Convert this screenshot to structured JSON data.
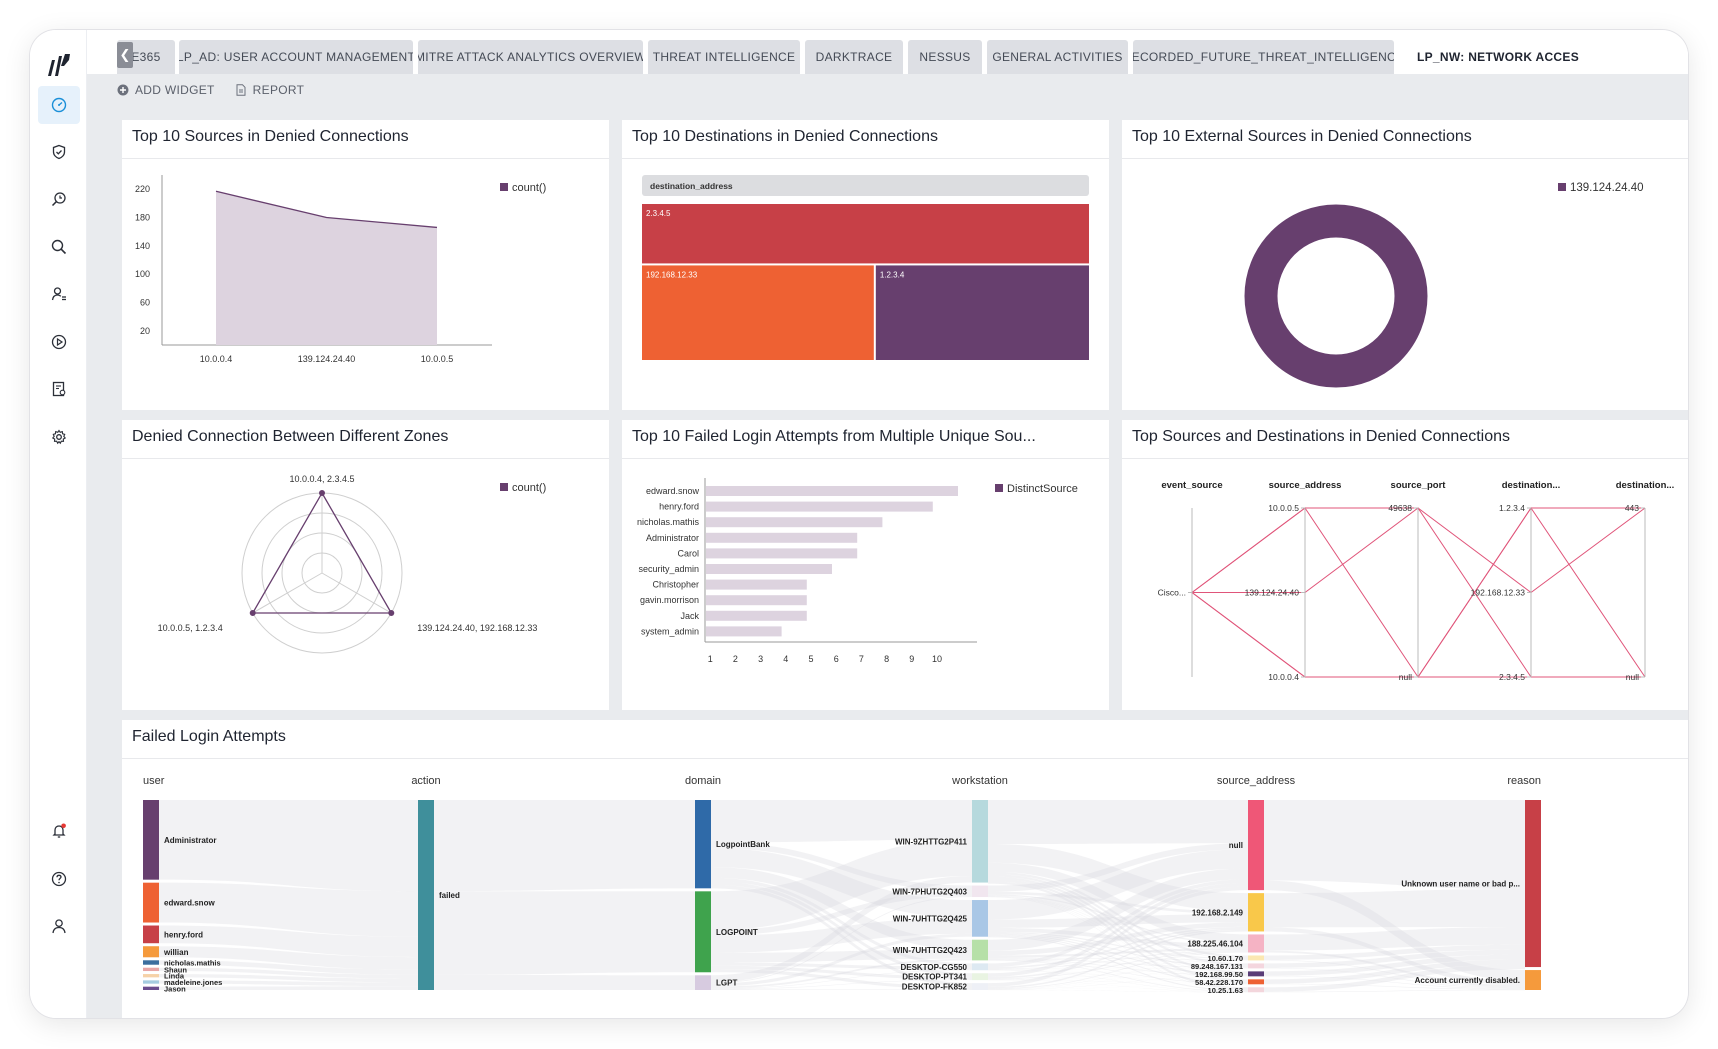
{
  "tabs": [
    {
      "label": "E365",
      "active": false
    },
    {
      "label": "LP_AD: USER ACCOUNT MANAGEMENT",
      "active": false
    },
    {
      "label": "MITRE ATTACK ANALYTICS OVERVIEW",
      "active": false
    },
    {
      "label": "THREAT INTELLIGENCE",
      "active": false
    },
    {
      "label": "DARKTRACE",
      "active": false
    },
    {
      "label": "NESSUS",
      "active": false
    },
    {
      "label": "GENERAL ACTIVITIES",
      "active": false
    },
    {
      "label": "RECORDED_FUTURE_THREAT_INTELLIGENCE",
      "active": false
    },
    {
      "label": "LP_NW: NETWORK ACCES",
      "active": true
    }
  ],
  "toolbar": {
    "add_widget": "ADD WIDGET",
    "report": "REPORT"
  },
  "sidebar": {
    "items": [
      "dashboard-icon",
      "shield-icon",
      "search-history-icon",
      "search-icon",
      "user-activity-icon",
      "play-icon",
      "report-icon",
      "gear-icon"
    ],
    "bottom": [
      "bell-icon",
      "help-icon",
      "user-icon"
    ],
    "accent": "#1a8fd8",
    "alert_color": "#e53935"
  },
  "colors": {
    "purple": "#673f6e",
    "light_purple": "#ddd3df",
    "red": "#c74047",
    "orange": "#ee6133",
    "pink_line": "#e0557a"
  },
  "panels": {
    "p1": {
      "title": "Top 10 Sources in Denied Connections"
    },
    "p2": {
      "title": "Top 10 Destinations in Denied Connections"
    },
    "p3": {
      "title": "Top 10 External Sources in Denied Connections"
    },
    "p4": {
      "title": "Denied Connection Between Different Zones"
    },
    "p5": {
      "title": "Top 10 Failed Login Attempts from Multiple Unique Sou..."
    },
    "p6": {
      "title": "Top Sources and Destinations in Denied Connections"
    },
    "p7": {
      "title": "Failed Login Attempts"
    }
  },
  "chart_data": [
    {
      "id": "p1",
      "type": "area",
      "categories": [
        "10.0.0.4",
        "139.124.24.40",
        "10.0.0.5"
      ],
      "series": [
        {
          "name": "count()",
          "values": [
            217,
            180,
            166
          ]
        }
      ],
      "yticks": [
        20,
        60,
        100,
        140,
        180,
        220
      ],
      "ylim": [
        0,
        240
      ],
      "legend": "top-right"
    },
    {
      "id": "p2",
      "type": "treemap",
      "header": "destination_address",
      "items": [
        {
          "label": "2.3.4.5",
          "value": 40,
          "color": "#c74047"
        },
        {
          "label": "192.168.12.33",
          "value": 34,
          "color": "#ee6133"
        },
        {
          "label": "1.2.3.4",
          "value": 31,
          "color": "#673f6e"
        }
      ]
    },
    {
      "id": "p3",
      "type": "pie",
      "labels": [
        "139.124.24.40"
      ],
      "values": [
        100
      ],
      "legend": "top-right",
      "donut": true
    },
    {
      "id": "p4",
      "type": "radar",
      "axes": [
        "10.0.0.4, 2.3.4.5",
        "139.124.24.40, 192.168.12.33",
        "10.0.0.5, 1.2.3.4"
      ],
      "series": [
        {
          "name": "count()",
          "values": [
            1,
            1,
            1
          ]
        }
      ],
      "rmax": 1,
      "rings": 4,
      "legend": "top-right"
    },
    {
      "id": "p5",
      "type": "bar",
      "orientation": "horizontal",
      "categories": [
        "edward.snow",
        "henry.ford",
        "nicholas.mathis",
        "Administrator",
        "Carol",
        "security_admin",
        "Christopher",
        "gavin.morrison",
        "Jack",
        "system_admin"
      ],
      "series": [
        {
          "name": "DistinctSource",
          "values": [
            10,
            9,
            7,
            6,
            6,
            5,
            4,
            4,
            4,
            3
          ]
        }
      ],
      "xticks": [
        1,
        2,
        3,
        4,
        5,
        6,
        7,
        8,
        9,
        10
      ],
      "xlim": [
        0,
        10
      ],
      "legend": "top-right"
    },
    {
      "id": "p6",
      "type": "parallel",
      "axes": [
        {
          "name": "event_source",
          "ticks": [
            "Cisco..."
          ]
        },
        {
          "name": "source_address",
          "ticks": [
            "10.0.0.5",
            "139.124.24.40",
            "10.0.0.4"
          ]
        },
        {
          "name": "source_port",
          "ticks": [
            "49638",
            "null"
          ]
        },
        {
          "name": "destination...",
          "ticks": [
            "1.2.3.4",
            "192.168.12.33",
            "2.3.4.5"
          ]
        },
        {
          "name": "destination...",
          "ticks": [
            "443",
            "null"
          ]
        }
      ],
      "lines": [
        [
          "Cisco...",
          "10.0.0.5",
          "49638",
          "192.168.12.33",
          "443"
        ],
        [
          "Cisco...",
          "10.0.0.5",
          "null",
          "1.2.3.4",
          "null"
        ],
        [
          "Cisco...",
          "139.124.24.40",
          "49638",
          "2.3.4.5",
          "null"
        ],
        [
          "Cisco...",
          "10.0.0.4",
          "null",
          "1.2.3.4",
          "443"
        ],
        [
          "Cisco...",
          "10.0.0.4",
          "null",
          "2.3.4.5",
          "null"
        ]
      ]
    },
    {
      "id": "p7",
      "type": "sankey",
      "columns": [
        {
          "name": "user",
          "nodes": [
            {
              "label": "Administrator",
              "value": 36,
              "color": "#673f6e"
            },
            {
              "label": "edward.snow",
              "value": 18,
              "color": "#ee6133"
            },
            {
              "label": "henry.ford",
              "value": 8,
              "color": "#c74047"
            },
            {
              "label": "willian",
              "value": 5,
              "color": "#f59a3c"
            },
            {
              "label": "nicholas.mathis",
              "value": 2,
              "color": "#3c6e9e"
            },
            {
              "label": "Shaun",
              "value": 1.5,
              "color": "#e8a6a6"
            },
            {
              "label": "Linda",
              "value": 1.5,
              "color": "#f6d2a8"
            },
            {
              "label": "madeleine.jones",
              "value": 1.5,
              "color": "#a6cde0"
            },
            {
              "label": "Jason",
              "value": 1.5,
              "color": "#6b4e8e"
            }
          ]
        },
        {
          "name": "action",
          "nodes": [
            {
              "label": "failed",
              "value": 75,
              "color": "#3f8f9b"
            }
          ]
        },
        {
          "name": "domain",
          "nodes": [
            {
              "label": "LogpointBank",
              "value": 36,
              "color": "#2f6aa8"
            },
            {
              "label": "LOGPOINT",
              "value": 33,
              "color": "#3fa34d"
            },
            {
              "label": "LGPT",
              "value": 6,
              "color": "#d7cbe0"
            }
          ]
        },
        {
          "name": "workstation",
          "nodes": [
            {
              "label": "WIN-9ZHTTG2P411",
              "value": 36,
              "color": "#b6d9dd"
            },
            {
              "label": "WIN-7PHUTG2Q403",
              "value": 5,
              "color": "#f1e6ef"
            },
            {
              "label": "WIN-7UHTTG2Q425",
              "value": 16,
              "color": "#a9c7e6"
            },
            {
              "label": "WIN-7UHTTG2Q423",
              "value": 9,
              "color": "#b6e0a8"
            },
            {
              "label": "DESKTOP-CG550",
              "value": 3,
              "color": "#dde9f2"
            },
            {
              "label": "DESKTOP-PT341",
              "value": 3,
              "color": "#e9f4e2"
            },
            {
              "label": "DESKTOP-FK852",
              "value": 3,
              "color": "#eef0f6"
            }
          ]
        },
        {
          "name": "source_address",
          "nodes": [
            {
              "label": "null",
              "value": 40,
              "color": "#ef5777"
            },
            {
              "label": "192.168.2.149",
              "value": 17,
              "color": "#f9c84a"
            },
            {
              "label": "188.225.46.104",
              "value": 8,
              "color": "#f5b3c4"
            },
            {
              "label": "10.60.1.70",
              "value": 2.2,
              "color": "#fbe8b2"
            },
            {
              "label": "89.248.167.131",
              "value": 2.2,
              "color": "#f4d6de"
            },
            {
              "label": "192.168.99.50",
              "value": 2.2,
              "color": "#5a3d77"
            },
            {
              "label": "58.42.228.170",
              "value": 2.2,
              "color": "#ee6133"
            },
            {
              "label": "10.25.1.63",
              "value": 2.2,
              "color": "#f3d6dc"
            }
          ]
        },
        {
          "name": "reason",
          "nodes": [
            {
              "label": "Unknown user name or bad p...",
              "value": 67,
              "color": "#c74047"
            },
            {
              "label": "Account currently disabled.",
              "value": 8,
              "color": "#f59a3c"
            }
          ]
        }
      ]
    }
  ]
}
